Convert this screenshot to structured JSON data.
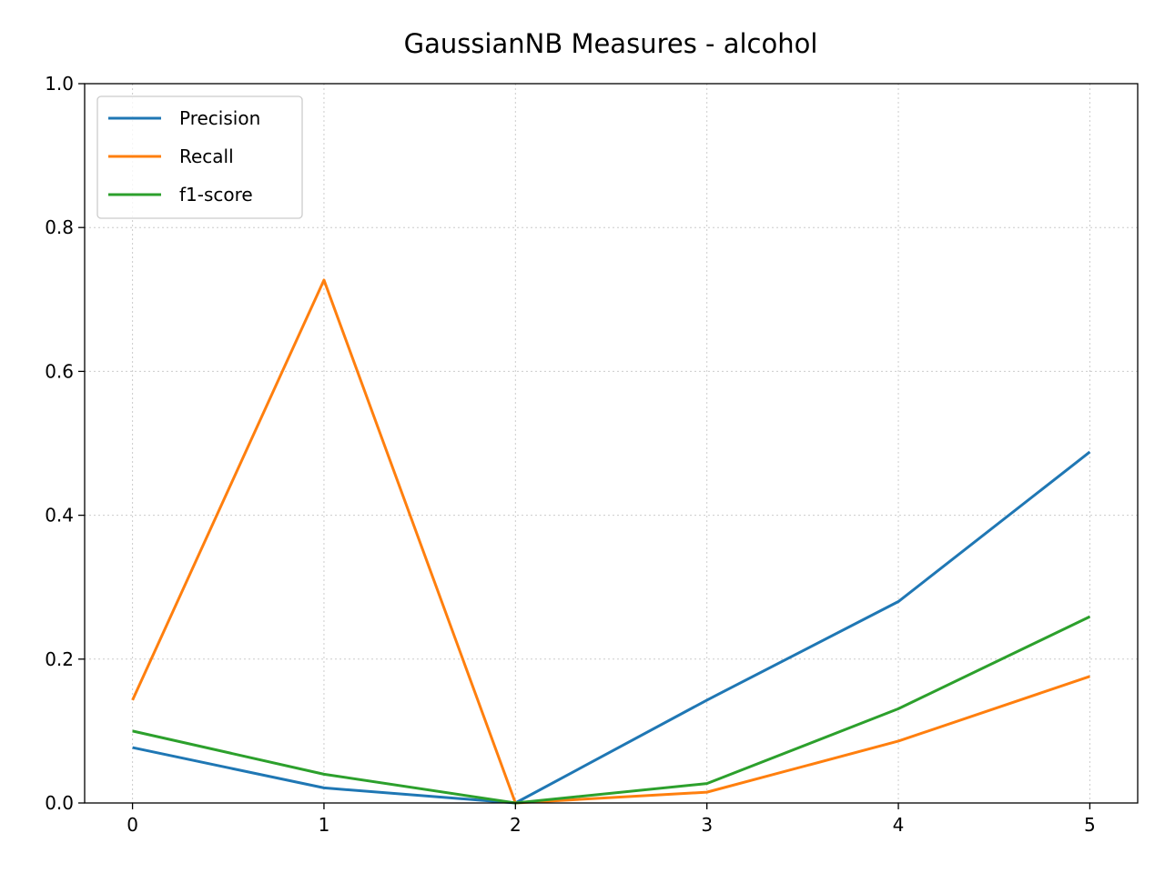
{
  "chart_data": {
    "type": "line",
    "title": "GaussianNB Measures - alcohol",
    "xlabel": "",
    "ylabel": "",
    "x": [
      0,
      1,
      2,
      3,
      4,
      5
    ],
    "xticks": [
      "0",
      "1",
      "2",
      "3",
      "4",
      "5"
    ],
    "yticks": [
      "0.0",
      "0.2",
      "0.4",
      "0.6",
      "0.8",
      "1.0"
    ],
    "xlim": [
      -0.25,
      5.25
    ],
    "ylim": [
      0,
      1
    ],
    "grid": true,
    "legend_position": "top-left",
    "series": [
      {
        "name": "Precision",
        "color": "#1f77b4",
        "values": [
          0.077,
          0.021,
          0.0,
          0.143,
          0.28,
          0.488
        ]
      },
      {
        "name": "Recall",
        "color": "#ff7f0e",
        "values": [
          0.143,
          0.727,
          0.0,
          0.015,
          0.086,
          0.176
        ]
      },
      {
        "name": "f1-score",
        "color": "#2ca02c",
        "values": [
          0.1,
          0.04,
          0.0,
          0.027,
          0.131,
          0.259
        ]
      }
    ]
  }
}
